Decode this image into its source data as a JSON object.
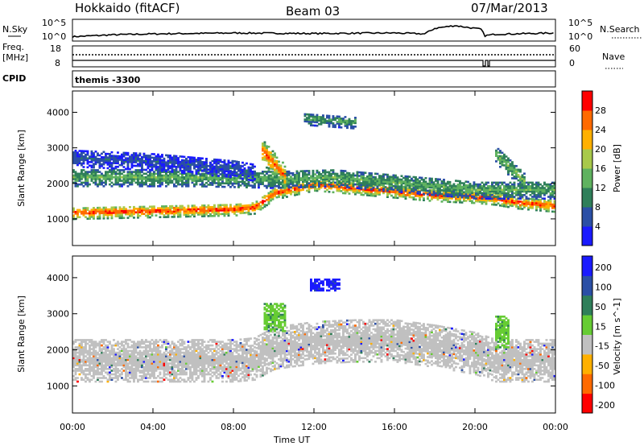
{
  "header": {
    "station": "Hokkaido (fitACF)",
    "beam": "Beam 03",
    "date": "07/Mar/2013"
  },
  "strip_labels": {
    "nsky": "N.Sky",
    "nsky_hi": "10^5",
    "nsky_lo": "10^0",
    "nsearch": "N.Search",
    "freq_line1": "Freq.",
    "freq_line2": "[MHz]",
    "freq_hi": "18",
    "freq_lo": "8",
    "nave": "Nave",
    "nave_hi": "60",
    "nave_lo": "0",
    "cpid": "CPID",
    "cpid_value": "themis -3300"
  },
  "chart_data": [
    {
      "type": "heatmap",
      "name": "power",
      "ylabel": "Slant Range [km]",
      "ylim": [
        250,
        4600
      ],
      "yticks": [
        "1000",
        "2000",
        "3000",
        "4000"
      ],
      "yticks_values": [
        1000,
        2000,
        3000,
        4000
      ],
      "colorbar_label": "Power [dB]",
      "colorbar_ticks": [
        "4",
        "8",
        "12",
        "16",
        "20",
        "24",
        "28"
      ],
      "colorbar_range": [
        0,
        32
      ],
      "colors": [
        "#1a1aff",
        "#2b4fa6",
        "#2f7f5a",
        "#5fb25f",
        "#a8c94a",
        "#ffb000",
        "#ff6a00",
        "#ff0000"
      ],
      "bands": [
        {
          "desc": "main layer",
          "t": [
            0,
            4,
            8,
            9,
            10,
            12,
            14,
            16,
            18,
            20,
            21,
            22,
            24
          ],
          "center": [
            1150,
            1200,
            1250,
            1300,
            1700,
            1950,
            1850,
            1750,
            1650,
            1600,
            1550,
            1450,
            1350
          ],
          "width": 350,
          "level": 29
        },
        {
          "desc": "upper layer",
          "t": [
            0,
            6,
            10,
            13,
            17,
            20,
            24
          ],
          "center": [
            2150,
            2150,
            2100,
            2150,
            1950,
            1800,
            1800
          ],
          "width": 500,
          "level": 14
        },
        {
          "desc": "far layer",
          "t": [
            0,
            4,
            8,
            9
          ],
          "center": [
            2700,
            2600,
            2400,
            2300
          ],
          "width": 500,
          "level": 6
        },
        {
          "desc": "streak",
          "t": [
            9.4,
            10.5
          ],
          "center": [
            2900,
            2200
          ],
          "width": 700,
          "level": 27
        },
        {
          "desc": "high patch",
          "t": [
            11.5,
            14
          ],
          "center": [
            3800,
            3700
          ],
          "width": 350,
          "level": 13
        },
        {
          "desc": "late streak",
          "t": [
            21,
            22.5
          ],
          "center": [
            2800,
            2000
          ],
          "width": 500,
          "level": 15
        }
      ]
    },
    {
      "type": "heatmap",
      "name": "velocity",
      "ylabel": "Slant Range [km]",
      "ylim": [
        250,
        4600
      ],
      "yticks": [
        "1000",
        "2000",
        "3000",
        "4000"
      ],
      "yticks_values": [
        1000,
        2000,
        3000,
        4000
      ],
      "colorbar_label": "Velocity [m s^-1]",
      "colorbar_ticks": [
        "200",
        "100",
        "50",
        "15",
        "-15",
        "-50",
        "-100",
        "-200"
      ],
      "colors": [
        "#1a1aff",
        "#2b4fa6",
        "#2f7f5a",
        "#66cc33",
        "#c0c0c0",
        "#ffb000",
        "#ff6a00",
        "#ff0000"
      ],
      "bands": [
        {
          "desc": "ground scatter",
          "t": [
            0,
            4,
            8,
            9,
            10,
            12,
            14,
            16,
            18,
            20,
            21,
            22,
            24
          ],
          "center": [
            1700,
            1700,
            1700,
            1750,
            2050,
            2200,
            2250,
            2250,
            2100,
            1900,
            1700,
            1700,
            1700
          ],
          "width": 1200,
          "level": 0
        },
        {
          "desc": "green patch",
          "t": [
            9.5,
            10.5
          ],
          "center": [
            2900,
            2900
          ],
          "width": 800,
          "level": 30
        },
        {
          "desc": "blue patch",
          "t": [
            11.8,
            13.2
          ],
          "center": [
            3800,
            3800
          ],
          "width": 350,
          "level": 190
        },
        {
          "desc": "late green",
          "t": [
            21,
            21.7
          ],
          "center": [
            2500,
            2500
          ],
          "width": 900,
          "level": 30
        }
      ]
    }
  ],
  "nsky_series": {
    "t": [
      0,
      2,
      4,
      8,
      12,
      16,
      17.5,
      18,
      19,
      20.3,
      20.5,
      21,
      24
    ],
    "level": [
      0.15,
      0.25,
      0.3,
      0.35,
      0.32,
      0.35,
      0.3,
      0.6,
      0.75,
      0.55,
      0.2,
      0.28,
      0.35
    ]
  },
  "x_axis": {
    "label": "Time UT",
    "ticks": [
      "00:00",
      "04:00",
      "08:00",
      "12:00",
      "16:00",
      "20:00",
      "00:00"
    ],
    "range_hours": [
      0,
      24
    ]
  }
}
